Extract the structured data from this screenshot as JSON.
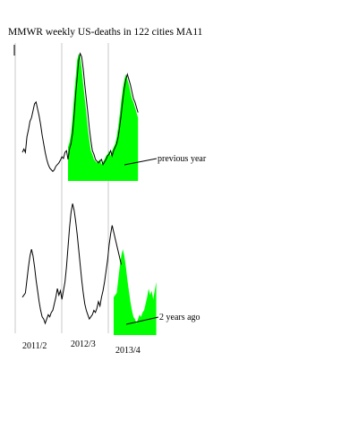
{
  "chart_data": {
    "type": "line",
    "title": "MMWR  weekly US-deaths in 122 cities MA11",
    "seasons": [
      "2011/2",
      "2012/3",
      "2013/4"
    ],
    "colors": {
      "line": "#000000",
      "fill": "#00ff00",
      "divider": "#c8c8c8",
      "pointer": "#000000"
    },
    "panels": [
      {
        "annotation": "previous year",
        "line_series": [
          -3.4,
          -3.0,
          -3.4,
          -1.6,
          -0.8,
          0.2,
          0.6,
          1.4,
          2.2,
          2.4,
          1.6,
          0.8,
          -0.2,
          -1.4,
          -2.4,
          -3.4,
          -4.2,
          -4.8,
          -5.2,
          -5.4,
          -5.6,
          -5.4,
          -5.0,
          -4.8,
          -4.6,
          -4.3,
          -3.9,
          -4.1,
          -3.4,
          -3.2,
          -4.2,
          -3.0,
          -2.4,
          -1.2,
          0.8,
          3.2,
          5.2,
          7.2,
          8.0,
          7.6,
          6.2,
          4.4,
          2.8,
          1.2,
          -0.6,
          -2.0,
          -3.2,
          -3.6,
          -4.2,
          -4.4,
          -4.6,
          -4.4,
          -4.2,
          -4.8,
          -4.5,
          -4.2,
          -3.8,
          -3.6,
          -3.2,
          -3.8,
          -3.2,
          -2.8,
          -2.4,
          -1.6,
          -0.4,
          1.0,
          2.6,
          4.0,
          5.0,
          5.6,
          5.0,
          4.4,
          3.6,
          2.8,
          2.4,
          1.8,
          1.2
        ],
        "fill_series": [
          -2.8,
          -2.2,
          -1.2,
          0.8,
          3.2,
          5.2,
          7.2,
          8.0,
          7.6,
          6.2,
          4.4,
          2.8,
          1.2,
          -0.6,
          -2.0,
          -3.2,
          -3.6,
          -4.2,
          -4.4,
          -4.6,
          -4.4,
          -4.2,
          -4.8,
          -4.5,
          -4.2,
          -3.8,
          -3.6,
          -3.2,
          -3.8,
          -3.2,
          -2.8,
          -2.4,
          -1.6,
          -0.4,
          1.0,
          2.6,
          4.0,
          5.0,
          5.6,
          5.0,
          4.4,
          3.6,
          2.8,
          2.4,
          1.8,
          1.2,
          0.6
        ],
        "ylim": [
          -7,
          9
        ]
      },
      {
        "annotation": "2 years ago",
        "line_series": [
          -2.2,
          -2.0,
          -1.8,
          -0.6,
          0.6,
          1.6,
          2.2,
          1.6,
          0.6,
          -0.6,
          -1.6,
          -2.6,
          -3.4,
          -4.0,
          -4.2,
          -4.6,
          -4.2,
          -3.8,
          -4.0,
          -3.6,
          -3.4,
          -2.8,
          -2.2,
          -1.4,
          -2.0,
          -1.6,
          -2.4,
          -1.6,
          -0.8,
          0.6,
          2.4,
          4.2,
          5.6,
          6.4,
          5.8,
          4.8,
          3.6,
          2.2,
          0.8,
          -0.6,
          -1.8,
          -2.8,
          -3.4,
          -3.8,
          -4.2,
          -4.0,
          -3.8,
          -3.4,
          -3.6,
          -3.2,
          -2.6,
          -3.0,
          -2.2,
          -1.6,
          -0.8,
          0.2,
          1.2,
          2.6,
          3.6,
          4.4,
          3.8,
          3.2,
          2.6,
          2.0,
          1.4,
          0.8
        ],
        "fill_series": [
          -2.2,
          -2.0,
          -1.8,
          -0.6,
          0.6,
          1.6,
          2.2,
          1.6,
          0.6,
          -0.6,
          -1.6,
          -2.6,
          -3.4,
          -4.0,
          -4.2,
          -4.6,
          -4.2,
          -3.8,
          -4.0,
          -3.6,
          -3.4,
          -2.8,
          -2.2,
          -1.4,
          -2.0,
          -1.6,
          -2.4,
          -1.6,
          -0.8
        ],
        "ylim": [
          -6,
          7
        ]
      }
    ],
    "grid": false,
    "legend": "none"
  }
}
